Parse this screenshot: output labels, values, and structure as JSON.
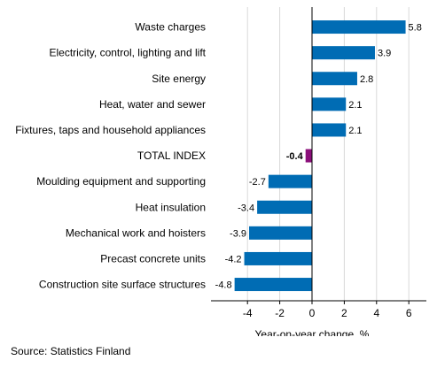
{
  "chart_data": {
    "type": "bar",
    "orientation": "horizontal",
    "categories": [
      "Waste charges",
      "Electricity, control, lighting and lift",
      "Site energy",
      "Heat, water and sewer",
      "Fixtures, taps and household appliances",
      "TOTAL INDEX",
      "Moulding equipment and supporting",
      "Heat insulation",
      "Mechanical work and hoisters",
      "Precast concrete units",
      "Construction site surface structures"
    ],
    "values": [
      5.8,
      3.9,
      2.8,
      2.1,
      2.1,
      -0.4,
      -2.7,
      -3.4,
      -3.9,
      -4.2,
      -4.8
    ],
    "value_labels": [
      "5.8",
      "3.9",
      "2.8",
      "2.1",
      "2.1",
      "-0.4",
      "-2.7",
      "-3.4",
      "-3.9",
      "-4.2",
      "-4.8"
    ],
    "highlight_category": "TOTAL INDEX",
    "xlabel": "Year-on-year change, %",
    "xlim": [
      -6,
      7
    ],
    "xticks": [
      -4,
      -2,
      0,
      2,
      4,
      6
    ],
    "xtick_labels": [
      "-4",
      "-2",
      "0",
      "2",
      "4",
      "6"
    ],
    "grid": true,
    "colors": {
      "bar": "#006cb4",
      "highlight": "#8b0f7a",
      "grid": "#d9d9d9",
      "axis": "#000000"
    }
  },
  "footer": {
    "source": "Source: Statistics Finland"
  }
}
